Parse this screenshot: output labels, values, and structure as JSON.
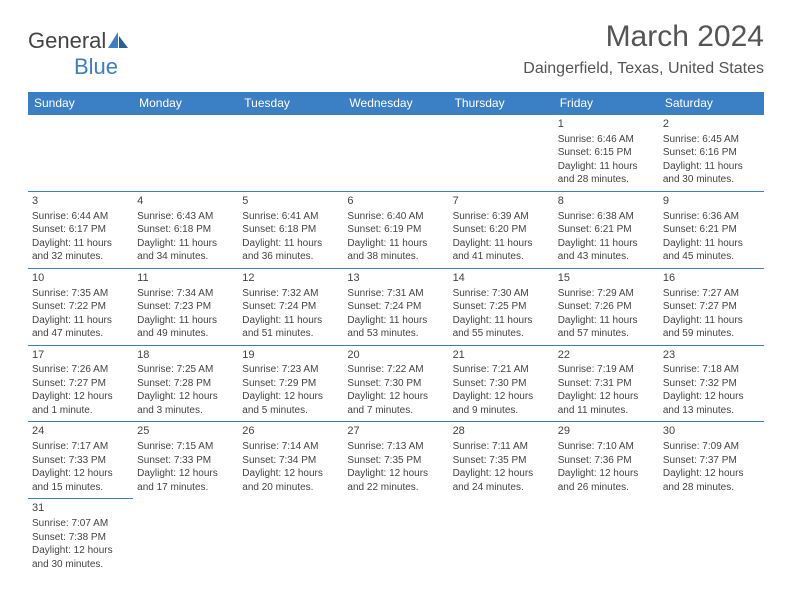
{
  "logo": {
    "text1": "General",
    "text2": "Blue"
  },
  "title": "March 2024",
  "location": "Daingerfield, Texas, United States",
  "colors": {
    "header_bg": "#3b7fc4",
    "header_text": "#ffffff",
    "border": "#3b7fc4",
    "body_text": "#444444",
    "background": "#ffffff",
    "logo_accent": "#3b7fc4"
  },
  "typography": {
    "title_fontsize": 30,
    "location_fontsize": 16,
    "dayheader_fontsize": 12,
    "cell_fontsize": 10
  },
  "layout": {
    "columns": 7,
    "rows": 6
  },
  "day_headers": [
    "Sunday",
    "Monday",
    "Tuesday",
    "Wednesday",
    "Thursday",
    "Friday",
    "Saturday"
  ],
  "weeks": [
    [
      null,
      null,
      null,
      null,
      null,
      {
        "n": "1",
        "sr": "Sunrise: 6:46 AM",
        "ss": "Sunset: 6:15 PM",
        "d1": "Daylight: 11 hours",
        "d2": "and 28 minutes."
      },
      {
        "n": "2",
        "sr": "Sunrise: 6:45 AM",
        "ss": "Sunset: 6:16 PM",
        "d1": "Daylight: 11 hours",
        "d2": "and 30 minutes."
      }
    ],
    [
      {
        "n": "3",
        "sr": "Sunrise: 6:44 AM",
        "ss": "Sunset: 6:17 PM",
        "d1": "Daylight: 11 hours",
        "d2": "and 32 minutes."
      },
      {
        "n": "4",
        "sr": "Sunrise: 6:43 AM",
        "ss": "Sunset: 6:18 PM",
        "d1": "Daylight: 11 hours",
        "d2": "and 34 minutes."
      },
      {
        "n": "5",
        "sr": "Sunrise: 6:41 AM",
        "ss": "Sunset: 6:18 PM",
        "d1": "Daylight: 11 hours",
        "d2": "and 36 minutes."
      },
      {
        "n": "6",
        "sr": "Sunrise: 6:40 AM",
        "ss": "Sunset: 6:19 PM",
        "d1": "Daylight: 11 hours",
        "d2": "and 38 minutes."
      },
      {
        "n": "7",
        "sr": "Sunrise: 6:39 AM",
        "ss": "Sunset: 6:20 PM",
        "d1": "Daylight: 11 hours",
        "d2": "and 41 minutes."
      },
      {
        "n": "8",
        "sr": "Sunrise: 6:38 AM",
        "ss": "Sunset: 6:21 PM",
        "d1": "Daylight: 11 hours",
        "d2": "and 43 minutes."
      },
      {
        "n": "9",
        "sr": "Sunrise: 6:36 AM",
        "ss": "Sunset: 6:21 PM",
        "d1": "Daylight: 11 hours",
        "d2": "and 45 minutes."
      }
    ],
    [
      {
        "n": "10",
        "sr": "Sunrise: 7:35 AM",
        "ss": "Sunset: 7:22 PM",
        "d1": "Daylight: 11 hours",
        "d2": "and 47 minutes."
      },
      {
        "n": "11",
        "sr": "Sunrise: 7:34 AM",
        "ss": "Sunset: 7:23 PM",
        "d1": "Daylight: 11 hours",
        "d2": "and 49 minutes."
      },
      {
        "n": "12",
        "sr": "Sunrise: 7:32 AM",
        "ss": "Sunset: 7:24 PM",
        "d1": "Daylight: 11 hours",
        "d2": "and 51 minutes."
      },
      {
        "n": "13",
        "sr": "Sunrise: 7:31 AM",
        "ss": "Sunset: 7:24 PM",
        "d1": "Daylight: 11 hours",
        "d2": "and 53 minutes."
      },
      {
        "n": "14",
        "sr": "Sunrise: 7:30 AM",
        "ss": "Sunset: 7:25 PM",
        "d1": "Daylight: 11 hours",
        "d2": "and 55 minutes."
      },
      {
        "n": "15",
        "sr": "Sunrise: 7:29 AM",
        "ss": "Sunset: 7:26 PM",
        "d1": "Daylight: 11 hours",
        "d2": "and 57 minutes."
      },
      {
        "n": "16",
        "sr": "Sunrise: 7:27 AM",
        "ss": "Sunset: 7:27 PM",
        "d1": "Daylight: 11 hours",
        "d2": "and 59 minutes."
      }
    ],
    [
      {
        "n": "17",
        "sr": "Sunrise: 7:26 AM",
        "ss": "Sunset: 7:27 PM",
        "d1": "Daylight: 12 hours",
        "d2": "and 1 minute."
      },
      {
        "n": "18",
        "sr": "Sunrise: 7:25 AM",
        "ss": "Sunset: 7:28 PM",
        "d1": "Daylight: 12 hours",
        "d2": "and 3 minutes."
      },
      {
        "n": "19",
        "sr": "Sunrise: 7:23 AM",
        "ss": "Sunset: 7:29 PM",
        "d1": "Daylight: 12 hours",
        "d2": "and 5 minutes."
      },
      {
        "n": "20",
        "sr": "Sunrise: 7:22 AM",
        "ss": "Sunset: 7:30 PM",
        "d1": "Daylight: 12 hours",
        "d2": "and 7 minutes."
      },
      {
        "n": "21",
        "sr": "Sunrise: 7:21 AM",
        "ss": "Sunset: 7:30 PM",
        "d1": "Daylight: 12 hours",
        "d2": "and 9 minutes."
      },
      {
        "n": "22",
        "sr": "Sunrise: 7:19 AM",
        "ss": "Sunset: 7:31 PM",
        "d1": "Daylight: 12 hours",
        "d2": "and 11 minutes."
      },
      {
        "n": "23",
        "sr": "Sunrise: 7:18 AM",
        "ss": "Sunset: 7:32 PM",
        "d1": "Daylight: 12 hours",
        "d2": "and 13 minutes."
      }
    ],
    [
      {
        "n": "24",
        "sr": "Sunrise: 7:17 AM",
        "ss": "Sunset: 7:33 PM",
        "d1": "Daylight: 12 hours",
        "d2": "and 15 minutes."
      },
      {
        "n": "25",
        "sr": "Sunrise: 7:15 AM",
        "ss": "Sunset: 7:33 PM",
        "d1": "Daylight: 12 hours",
        "d2": "and 17 minutes."
      },
      {
        "n": "26",
        "sr": "Sunrise: 7:14 AM",
        "ss": "Sunset: 7:34 PM",
        "d1": "Daylight: 12 hours",
        "d2": "and 20 minutes."
      },
      {
        "n": "27",
        "sr": "Sunrise: 7:13 AM",
        "ss": "Sunset: 7:35 PM",
        "d1": "Daylight: 12 hours",
        "d2": "and 22 minutes."
      },
      {
        "n": "28",
        "sr": "Sunrise: 7:11 AM",
        "ss": "Sunset: 7:35 PM",
        "d1": "Daylight: 12 hours",
        "d2": "and 24 minutes."
      },
      {
        "n": "29",
        "sr": "Sunrise: 7:10 AM",
        "ss": "Sunset: 7:36 PM",
        "d1": "Daylight: 12 hours",
        "d2": "and 26 minutes."
      },
      {
        "n": "30",
        "sr": "Sunrise: 7:09 AM",
        "ss": "Sunset: 7:37 PM",
        "d1": "Daylight: 12 hours",
        "d2": "and 28 minutes."
      }
    ],
    [
      {
        "n": "31",
        "sr": "Sunrise: 7:07 AM",
        "ss": "Sunset: 7:38 PM",
        "d1": "Daylight: 12 hours",
        "d2": "and 30 minutes."
      },
      null,
      null,
      null,
      null,
      null,
      null
    ]
  ]
}
